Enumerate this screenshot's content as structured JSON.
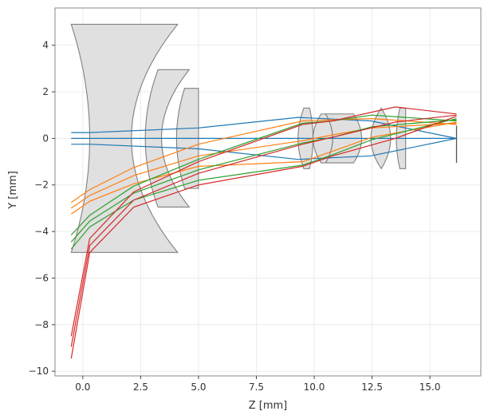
{
  "chart_data": {
    "type": "line",
    "title": "",
    "xlabel": "Z [mm]",
    "ylabel": "Y [mm]",
    "xlim": [
      -1.2,
      17.2
    ],
    "ylim": [
      -10.2,
      5.6
    ],
    "grid": true,
    "x_ticks": [
      0.0,
      2.5,
      5.0,
      7.5,
      10.0,
      12.5,
      15.0
    ],
    "x_tick_labels": [
      "0.0",
      "2.5",
      "5.0",
      "7.5",
      "10.0",
      "12.5",
      "15.0"
    ],
    "y_ticks": [
      -10,
      -8,
      -6,
      -4,
      -2,
      0,
      2,
      4
    ],
    "y_tick_labels": [
      "−10",
      "−8",
      "−6",
      "−4",
      "−2",
      "0",
      "2",
      "4"
    ],
    "colors": {
      "blue": "#1f77b4",
      "orange": "#ff7f0e",
      "green": "#2ca02c",
      "red": "#d62728",
      "lens_fill": "#e0e0e0",
      "lens_edge": "#808080",
      "grid": "#ebebeb",
      "frame": "#888888"
    },
    "lenses": [
      {
        "name": "lens-1",
        "front_z": 0.3,
        "front_sag": -0.8,
        "back_z": 2.1,
        "back_sag": 2.0,
        "h": 4.9,
        "front_h": 4.9,
        "back_h": 4.9
      },
      {
        "name": "lens-2",
        "front_z": 2.7,
        "front_sag": 0.55,
        "back_z": 3.4,
        "back_sag": 1.2,
        "h": 2.95,
        "front_h": 2.95,
        "back_h": 2.95
      },
      {
        "name": "lens-3",
        "front_z": 4.05,
        "front_sag": 0.35,
        "back_z": 5.0,
        "back_sag": 0.0,
        "h": 2.15,
        "front_h": 2.15,
        "back_h": 2.15
      },
      {
        "name": "lens-4",
        "front_z": 9.3,
        "front_sag": 0.25,
        "back_z": 9.95,
        "back_sag": -0.15,
        "h": 1.3,
        "front_h": 1.3,
        "back_h": 1.3
      },
      {
        "name": "lens-5",
        "front_z": 9.95,
        "front_sag": 0.35,
        "back_z": 10.8,
        "back_sag": -0.3,
        "h": 1.05,
        "front_h": 1.05,
        "back_h": 1.05
      },
      {
        "name": "lens-6",
        "front_z": 10.8,
        "front_sag": -0.3,
        "back_z": 12.05,
        "back_sag": -0.35,
        "h": 1.05,
        "front_h": 1.05,
        "back_h": 1.05
      },
      {
        "name": "lens-7",
        "front_z": 12.45,
        "front_sag": 0.45,
        "back_z": 13.3,
        "back_sag": -0.4,
        "h": 1.3,
        "front_h": 1.3,
        "back_h": 1.3
      },
      {
        "name": "lens-8",
        "front_z": 13.55,
        "front_sag": 0.15,
        "back_z": 13.95,
        "back_sag": 0.0,
        "h": 1.3,
        "front_h": 1.3,
        "back_h": 1.3
      }
    ],
    "image_plane": {
      "z": 16.15,
      "y_top": 0.55,
      "y_bottom": -1.05
    },
    "rays": [
      {
        "color": "blue",
        "points": [
          [
            -0.5,
            0.25
          ],
          [
            0.3,
            0.25
          ],
          [
            5.0,
            0.45
          ],
          [
            9.3,
            0.9
          ],
          [
            12.45,
            0.75
          ],
          [
            16.15,
            0.0
          ]
        ]
      },
      {
        "color": "blue",
        "points": [
          [
            -0.5,
            0.0
          ],
          [
            16.15,
            0.0
          ]
        ]
      },
      {
        "color": "blue",
        "points": [
          [
            -0.5,
            -0.25
          ],
          [
            0.3,
            -0.25
          ],
          [
            5.0,
            -0.45
          ],
          [
            9.3,
            -0.9
          ],
          [
            12.45,
            -0.75
          ],
          [
            16.15,
            0.0
          ]
        ]
      },
      {
        "color": "orange",
        "points": [
          [
            -0.5,
            -2.75
          ],
          [
            0.3,
            -2.2
          ],
          [
            2.2,
            -1.25
          ],
          [
            5.0,
            -0.25
          ],
          [
            9.5,
            0.75
          ],
          [
            10.8,
            0.8
          ],
          [
            12.5,
            0.85
          ],
          [
            16.15,
            0.6
          ]
        ]
      },
      {
        "color": "orange",
        "points": [
          [
            -0.5,
            -3.0
          ],
          [
            0.3,
            -2.45
          ],
          [
            2.2,
            -1.6
          ],
          [
            5.0,
            -0.75
          ],
          [
            9.5,
            -0.1
          ],
          [
            10.8,
            0.15
          ],
          [
            12.5,
            0.45
          ],
          [
            16.15,
            0.65
          ]
        ]
      },
      {
        "color": "orange",
        "points": [
          [
            -0.5,
            -3.25
          ],
          [
            0.3,
            -2.7
          ],
          [
            2.2,
            -1.95
          ],
          [
            5.0,
            -1.2
          ],
          [
            9.5,
            -1.0
          ],
          [
            10.8,
            -0.55
          ],
          [
            12.5,
            0.05
          ],
          [
            16.15,
            0.7
          ]
        ]
      },
      {
        "color": "green",
        "points": [
          [
            -0.5,
            -4.15
          ],
          [
            0.3,
            -3.3
          ],
          [
            2.2,
            -2.05
          ],
          [
            5.0,
            -0.9
          ],
          [
            9.5,
            0.65
          ],
          [
            10.8,
            0.75
          ],
          [
            12.5,
            1.0
          ],
          [
            16.15,
            0.75
          ]
        ]
      },
      {
        "color": "green",
        "points": [
          [
            -0.5,
            -4.45
          ],
          [
            0.3,
            -3.55
          ],
          [
            2.2,
            -2.35
          ],
          [
            5.0,
            -1.35
          ],
          [
            9.5,
            -0.2
          ],
          [
            10.8,
            0.05
          ],
          [
            12.5,
            0.5
          ],
          [
            16.15,
            0.8
          ]
        ]
      },
      {
        "color": "green",
        "points": [
          [
            -0.5,
            -4.75
          ],
          [
            0.3,
            -3.8
          ],
          [
            2.2,
            -2.65
          ],
          [
            5.0,
            -1.8
          ],
          [
            9.5,
            -1.15
          ],
          [
            10.8,
            -0.7
          ],
          [
            12.5,
            -0.05
          ],
          [
            16.15,
            0.85
          ]
        ]
      },
      {
        "color": "red",
        "points": [
          [
            -0.5,
            -8.5
          ],
          [
            0.3,
            -4.3
          ],
          [
            2.2,
            -2.3
          ],
          [
            5.0,
            -1.0
          ],
          [
            9.5,
            0.6
          ],
          [
            10.8,
            0.75
          ],
          [
            13.5,
            1.35
          ],
          [
            16.15,
            1.05
          ]
        ]
      },
      {
        "color": "red",
        "points": [
          [
            -0.5,
            -8.95
          ],
          [
            0.3,
            -4.6
          ],
          [
            2.2,
            -2.65
          ],
          [
            5.0,
            -1.5
          ],
          [
            9.5,
            -0.25
          ],
          [
            10.8,
            0.05
          ],
          [
            13.5,
            0.7
          ],
          [
            16.15,
            1.0
          ]
        ]
      },
      {
        "color": "red",
        "points": [
          [
            -0.5,
            -9.45
          ],
          [
            0.3,
            -4.9
          ],
          [
            2.2,
            -2.95
          ],
          [
            5.0,
            -2.0
          ],
          [
            9.5,
            -1.2
          ],
          [
            10.8,
            -0.75
          ],
          [
            13.5,
            0.0
          ],
          [
            16.15,
            0.95
          ]
        ]
      }
    ]
  }
}
